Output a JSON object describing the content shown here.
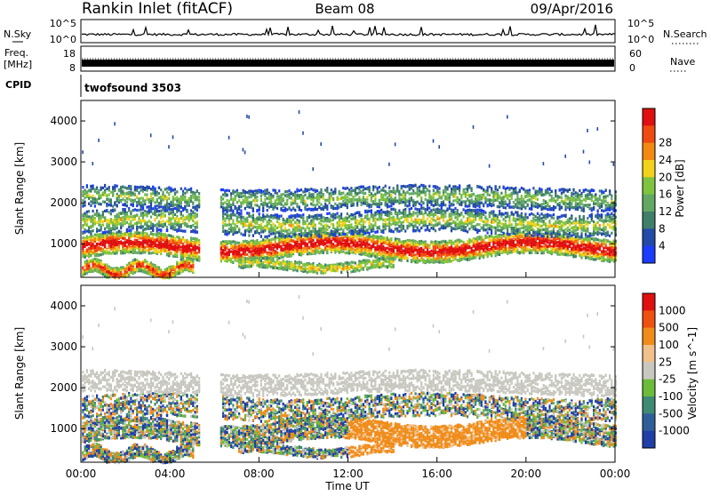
{
  "header": {
    "station": "Rankin Inlet (fitACF)",
    "beam": "Beam 08",
    "date": "09/Apr/2016"
  },
  "noise_panel": {
    "left_label": "N.Sky",
    "right_label": "N.Search",
    "tick_top": "10^5",
    "tick_bottom": "10^0"
  },
  "freq_panel": {
    "left_label": "Freq.",
    "left_unit": "[MHz]",
    "right_label": "Nave",
    "left_ticks": [
      "18",
      "8"
    ],
    "right_ticks": [
      "60",
      "0"
    ]
  },
  "cpid_panel": {
    "label": "CPID",
    "value": "twofsound 3503"
  },
  "colors": {
    "power_scale": [
      "#1b3cff",
      "#234aa8",
      "#3f7f6a",
      "#62a863",
      "#7fc43e",
      "#f2d21a",
      "#f28a12",
      "#f04a10",
      "#e01010"
    ],
    "velocity_scale": [
      "#1f3ea8",
      "#2f5f9a",
      "#3f8a74",
      "#6dbb3a",
      "#c8c8c0",
      "#f2c08a",
      "#f08c1a",
      "#f05010",
      "#e01010"
    ]
  },
  "chart_data": [
    {
      "type": "heatmap",
      "panel": "power",
      "xlabel": "Time UT",
      "ylabel": "Slant Range [km]",
      "x_ticks": [
        "00:00",
        "04:00",
        "08:00",
        "12:00",
        "16:00",
        "20:00",
        "00:00"
      ],
      "x_range_hours": [
        0,
        24
      ],
      "ylim": [
        180,
        4500
      ],
      "y_ticks": [
        1000,
        2000,
        3000,
        4000
      ],
      "colorbar_label": "Power [dB]",
      "colorbar_ticks": [
        "4",
        "8",
        "12",
        "16",
        "20",
        "24",
        "28"
      ],
      "colorbar_range": [
        0,
        30
      ]
    },
    {
      "type": "heatmap",
      "panel": "velocity",
      "xlabel": "Time UT",
      "ylabel": "Slant Range [km]",
      "x_ticks": [
        "00:00",
        "04:00",
        "08:00",
        "12:00",
        "16:00",
        "20:00",
        "00:00"
      ],
      "x_range_hours": [
        0,
        24
      ],
      "ylim": [
        180,
        4500
      ],
      "y_ticks": [
        1000,
        2000,
        3000,
        4000
      ],
      "colorbar_label": "Velocity [m s^-1]",
      "colorbar_ticks": [
        "1000",
        "500",
        "100",
        "25",
        "-25",
        "-100",
        "-500",
        "-1000"
      ]
    }
  ]
}
